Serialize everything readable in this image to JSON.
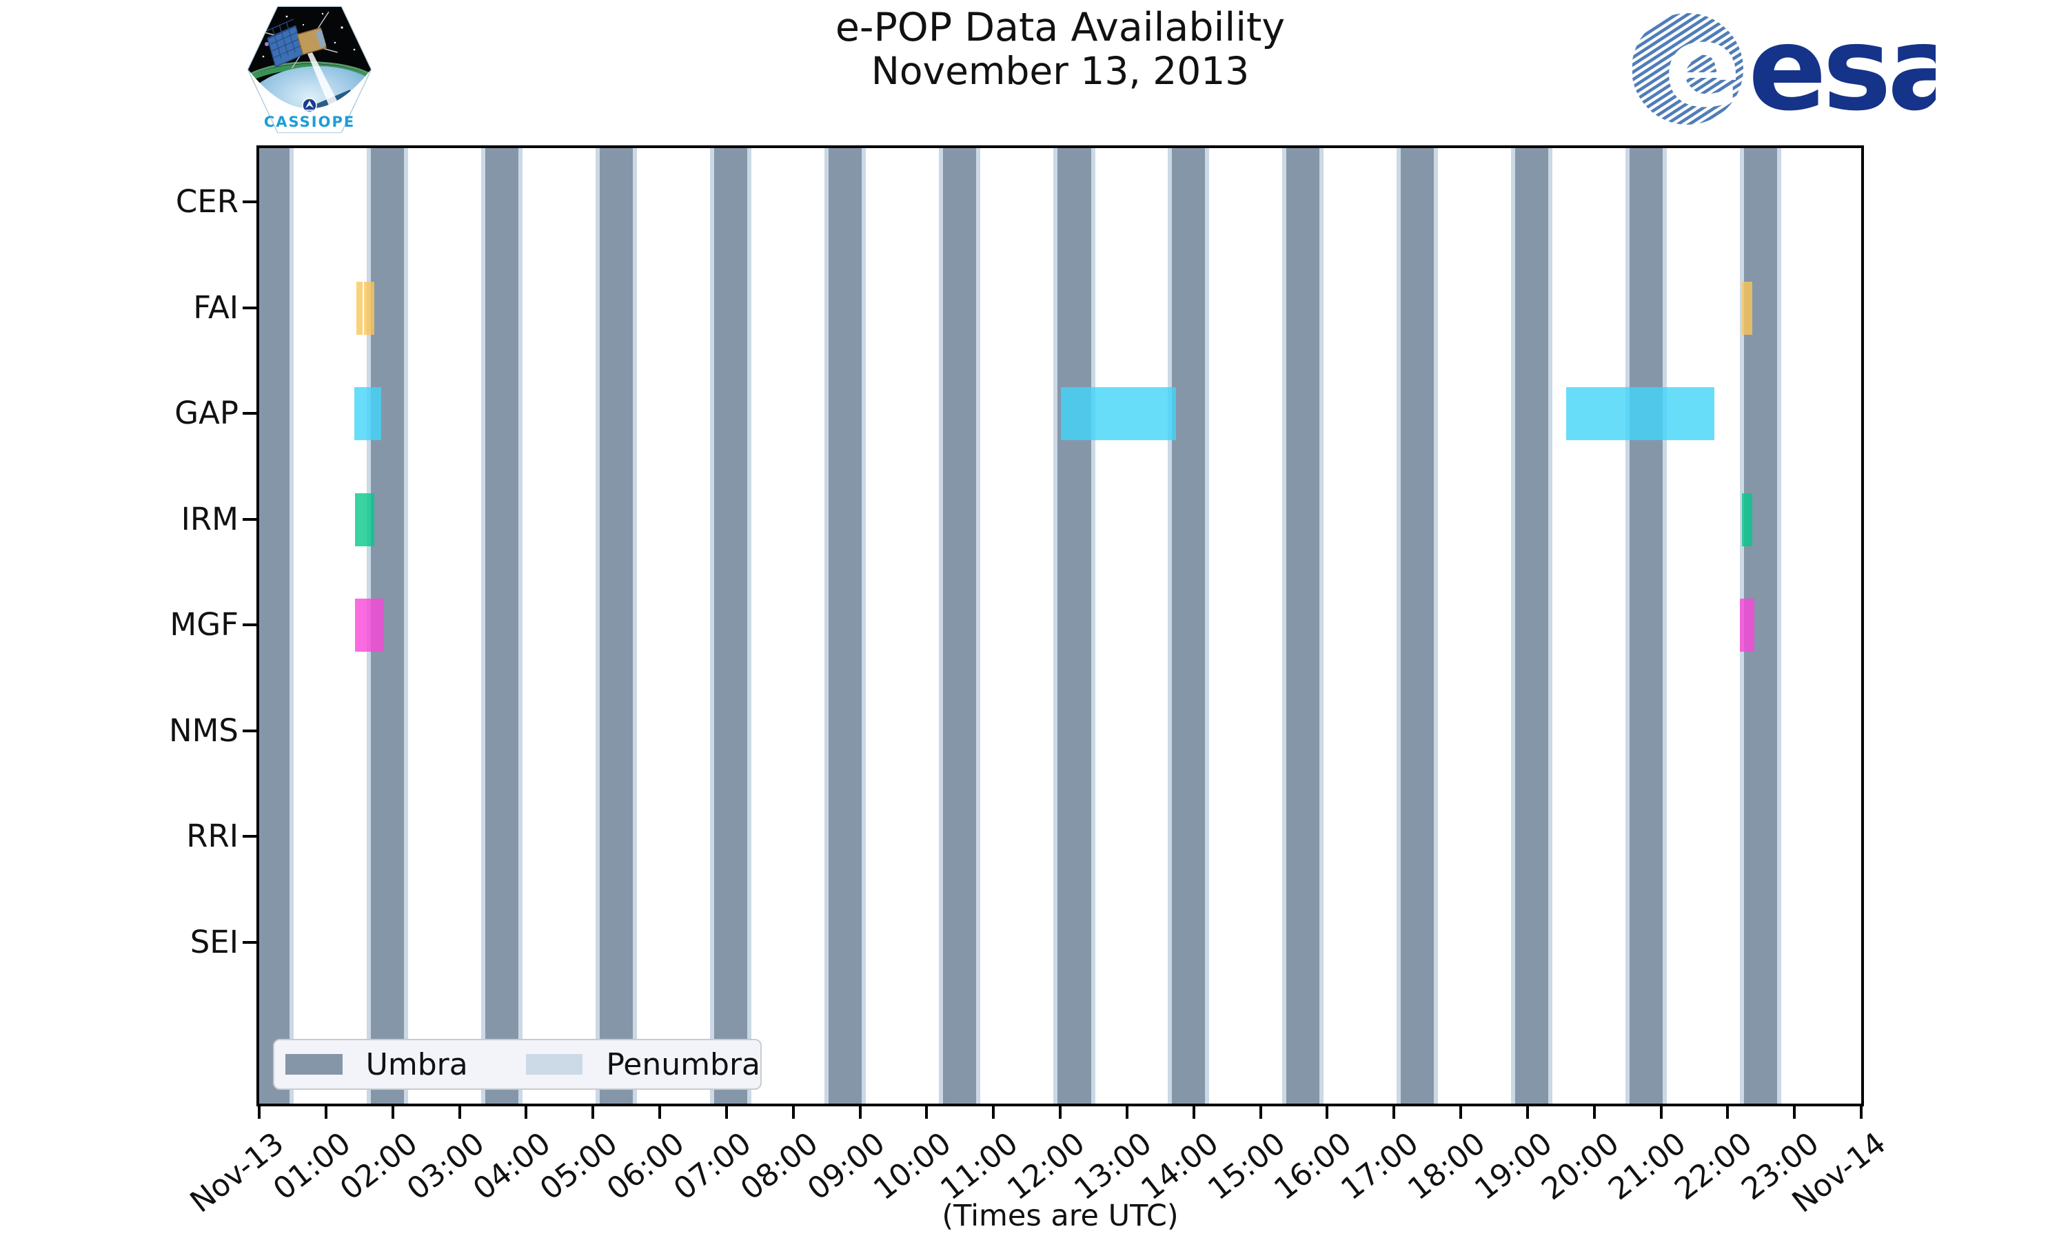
{
  "title": {
    "line1": "e-POP Data Availability",
    "line2": "November 13, 2013"
  },
  "caption": "(Times are UTC)",
  "branding": {
    "cassiope_patch_label": "CASSIOPE",
    "esa_wordmark": "esa",
    "esa_navy": "#16338A",
    "esa_globe_stripe_blue": "#4F7DB8",
    "cassiope_text_blue": "#1E9CD7"
  },
  "legend": {
    "items": [
      {
        "label": "Umbra",
        "color": "#8596A9"
      },
      {
        "label": "Penumbra",
        "color": "#CCD9E6"
      }
    ]
  },
  "chart_data": {
    "type": "bar",
    "variant": "horizontal-availability-timeline",
    "title": "e-POP Data Availability November 13, 2013",
    "xlabel": "(Times are UTC)",
    "grid": false,
    "legend_position": "lower-left-inside",
    "x_axis": {
      "range_hours": [
        0,
        24
      ],
      "tick_labels": [
        "Nov-13",
        "01:00",
        "02:00",
        "03:00",
        "04:00",
        "05:00",
        "06:00",
        "07:00",
        "08:00",
        "09:00",
        "10:00",
        "11:00",
        "12:00",
        "13:00",
        "14:00",
        "15:00",
        "16:00",
        "17:00",
        "18:00",
        "19:00",
        "20:00",
        "21:00",
        "22:00",
        "23:00",
        "Nov-14"
      ],
      "tick_rotation_deg": -38
    },
    "rows": [
      "CER",
      "FAI",
      "GAP",
      "IRM",
      "MGF",
      "NMS",
      "RRI",
      "SEI"
    ],
    "umbra_color": "#8596A9",
    "penumbra_color": "#CBD8E5",
    "umbra_intervals_hours": [
      [
        0.0,
        0.45
      ],
      [
        1.67,
        2.17
      ],
      [
        3.39,
        3.88
      ],
      [
        5.1,
        5.6
      ],
      [
        6.82,
        7.31
      ],
      [
        8.53,
        9.03
      ],
      [
        10.24,
        10.74
      ],
      [
        11.96,
        12.46
      ],
      [
        13.67,
        14.17
      ],
      [
        15.39,
        15.88
      ],
      [
        17.1,
        17.6
      ],
      [
        18.82,
        19.31
      ],
      [
        20.53,
        21.03
      ],
      [
        22.24,
        22.74
      ]
    ],
    "series": [
      {
        "name": "FAI",
        "color": "rgba(250,197,89,0.8)",
        "intervals_hours": [
          [
            1.46,
            1.55
          ],
          [
            1.57,
            1.72
          ],
          [
            22.21,
            22.37
          ]
        ]
      },
      {
        "name": "GAP",
        "color": "rgba(66,213,249,0.8)",
        "intervals_hours": [
          [
            1.43,
            1.83
          ],
          [
            12.01,
            13.73
          ],
          [
            19.58,
            21.8
          ]
        ]
      },
      {
        "name": "IRM",
        "color": "rgba(6,200,137,0.8)",
        "intervals_hours": [
          [
            1.44,
            1.72
          ],
          [
            22.21,
            22.37
          ]
        ]
      },
      {
        "name": "MGF",
        "color": "rgba(249,70,216,0.8)",
        "intervals_hours": [
          [
            1.44,
            1.87
          ],
          [
            22.18,
            22.4
          ]
        ]
      }
    ]
  }
}
